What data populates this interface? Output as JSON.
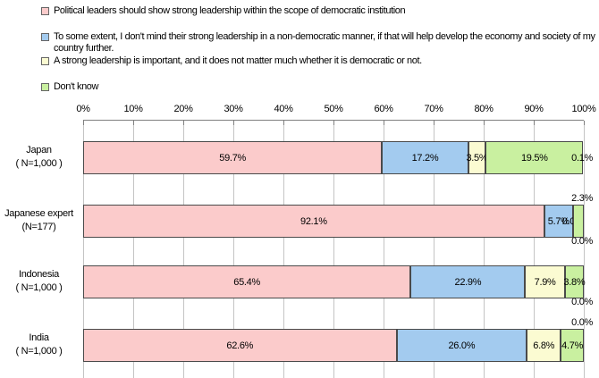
{
  "legend": {
    "items": [
      {
        "label": "Political leaders should show strong leadership within the scope of democratic institution",
        "color": "#FBCBCB"
      },
      {
        "label": "To some extent, I don't mind their strong leadership in a non-democratic manner, if that will help develop the economy and society of my country further.",
        "color": "#A3CBEF"
      },
      {
        "label": "A strong leadership is important, and it does not matter much whether it is democratic or not.",
        "color": "#FBFBD2"
      },
      {
        "label": "Don't know",
        "color": "#C9F0A0"
      }
    ]
  },
  "chart_data": {
    "type": "bar",
    "orientation": "horizontal-stacked",
    "grid": true,
    "legend_position": "top",
    "x_axis": {
      "position": "top",
      "range": [
        0,
        100
      ],
      "ticks": [
        "0%",
        "10%",
        "20%",
        "30%",
        "40%",
        "50%",
        "60%",
        "70%",
        "80%",
        "90%",
        "100%"
      ]
    },
    "categories": [
      {
        "line1": "Japan",
        "line2": "( N=1,000 )"
      },
      {
        "line1": "Japanese expert",
        "line2": "(N=177)"
      },
      {
        "line1": "Indonesia",
        "line2": "( N=1,000 )"
      },
      {
        "line1": "India",
        "line2": "( N=1,000 )"
      }
    ],
    "series": [
      {
        "name": "Political leaders should show strong leadership within the scope of democratic institution",
        "color": "#FBCBCB",
        "values": [
          59.7,
          92.1,
          65.4,
          62.6
        ]
      },
      {
        "name": "To some extent, I don't mind their strong leadership in a non-democratic manner, if that will help develop the economy and society of my country further.",
        "color": "#A3CBEF",
        "values": [
          17.2,
          5.7,
          22.9,
          26.0
        ]
      },
      {
        "name": "A strong leadership is important, and it does not matter much whether it is democratic or not.",
        "color": "#FBFBD2",
        "values": [
          3.5,
          0.0,
          7.9,
          6.8
        ]
      },
      {
        "name": "Don't know",
        "color": "#C9F0A0",
        "values": [
          19.5,
          2.3,
          3.8,
          4.7
        ]
      },
      {
        "name": "",
        "color": "#FFFFFF",
        "values": [
          0.1,
          0.0,
          0.0,
          0.0
        ]
      }
    ],
    "value_labels": [
      [
        "59.7%",
        "17.2%",
        "3.5%",
        "19.5%",
        "0.1%"
      ],
      [
        "92.1%",
        "5.7%",
        "0.0%",
        "2.3%",
        "0.0%"
      ],
      [
        "65.4%",
        "22.9%",
        "7.9%",
        "3.8%",
        "0.0%"
      ],
      [
        "62.6%",
        "26.0%",
        "6.8%",
        "4.7%",
        "0.0%"
      ]
    ],
    "label_placements": [
      [
        "center",
        "center",
        "center",
        "center",
        "right-edge"
      ],
      [
        "center",
        "center",
        "seg-center",
        "above-right",
        "below-right"
      ],
      [
        "center",
        "center",
        "center",
        "center",
        "below-right"
      ],
      [
        "center",
        "center",
        "center",
        "center",
        "above-right"
      ]
    ]
  }
}
